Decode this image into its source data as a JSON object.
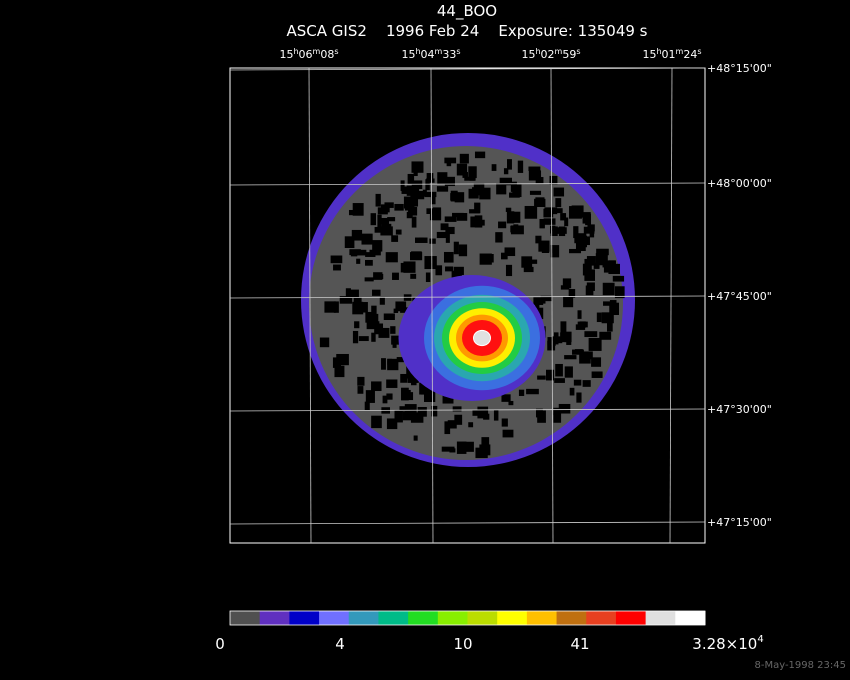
{
  "header": {
    "title": "44_BOO",
    "subtitle": "ASCA GIS2    1996 Feb 24    Exposure: 135049 s"
  },
  "ra_labels": [
    [
      "15",
      "h",
      "06",
      "m",
      "08",
      "s"
    ],
    [
      "15",
      "h",
      "04",
      "m",
      "33",
      "s"
    ],
    [
      "15",
      "h",
      "02",
      "m",
      "59",
      "s"
    ],
    [
      "15",
      "h",
      "01",
      "m",
      "24",
      "s"
    ]
  ],
  "dec_labels": [
    "+48°15'00\"",
    "+48°00'00\"",
    "+47°45'00\"",
    "+47°30'00\"",
    "+47°15'00\""
  ],
  "colorbar": {
    "labels": [
      [
        "0"
      ],
      [
        "4"
      ],
      [
        "10"
      ],
      [
        "41"
      ],
      [
        "3.28×10",
        "4"
      ]
    ]
  },
  "footer": {
    "timestamp": "8-May-1998 23:45"
  }
}
